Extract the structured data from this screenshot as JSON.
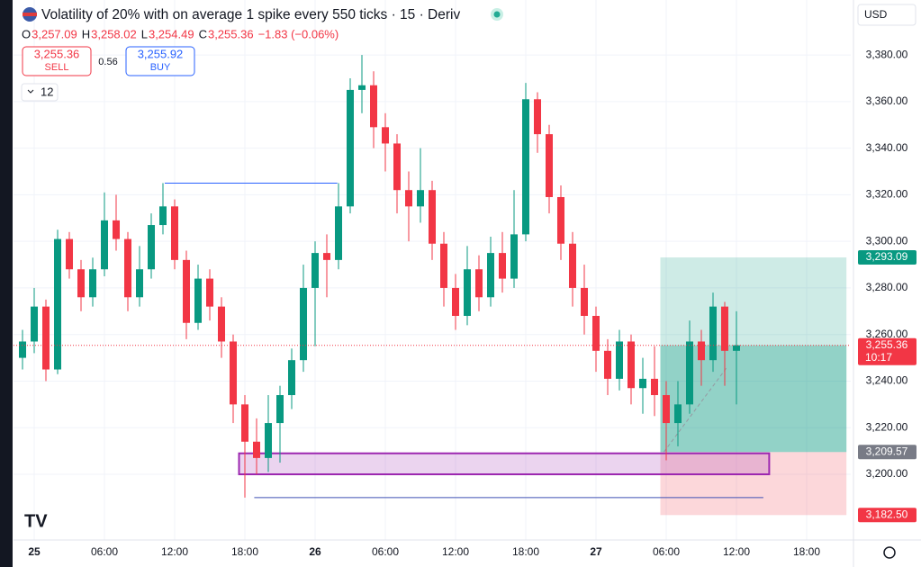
{
  "toolbar": {
    "title": "Volatility of 20% with on average 1 spike every 550 ticks · 15 · Deriv",
    "ohlc": [
      {
        "key": "O",
        "value": "3,257.09"
      },
      {
        "key": "H",
        "value": "3,258.02"
      },
      {
        "key": "L",
        "value": "3,254.49"
      },
      {
        "key": "C",
        "value": "3,255.36"
      }
    ],
    "change": "−1.83 (−0.06%)",
    "sell": {
      "price": "3,255.36",
      "label": "SELL"
    },
    "spread": "0.56",
    "buy": {
      "price": "3,255.92",
      "label": "BUY"
    },
    "indicators": "12",
    "currency": "USD"
  },
  "chart_data": {
    "type": "candlestick",
    "up_color": "#089981",
    "down_color": "#f23645",
    "grid": true,
    "xlim": [
      -1.77,
      69.77
    ],
    "ylim": [
      3171.8,
      3403.6
    ],
    "xticks": [
      {
        "value": 0,
        "label": "25"
      },
      {
        "value": 6,
        "label": "06:00"
      },
      {
        "value": 12,
        "label": "12:00"
      },
      {
        "value": 18,
        "label": "18:00"
      },
      {
        "value": 24,
        "label": "26"
      },
      {
        "value": 30,
        "label": "06:00"
      },
      {
        "value": 36,
        "label": "12:00"
      },
      {
        "value": 42,
        "label": "18:00"
      },
      {
        "value": 48,
        "label": "27"
      },
      {
        "value": 54,
        "label": "06:00"
      },
      {
        "value": 60,
        "label": "12:00"
      },
      {
        "value": 66,
        "label": "18:00"
      }
    ],
    "yticks": [
      {
        "value": 3200,
        "label": "3,200.00"
      },
      {
        "value": 3220,
        "label": "3,220.00"
      },
      {
        "value": 3240,
        "label": "3,240.00"
      },
      {
        "value": 3260,
        "label": "3,260.00"
      },
      {
        "value": 3280,
        "label": "3,280.00"
      },
      {
        "value": 3300,
        "label": "3,300.00"
      },
      {
        "value": 3320,
        "label": "3,320.00"
      },
      {
        "value": 3340,
        "label": "3,340.00"
      },
      {
        "value": 3360,
        "label": "3,360.00"
      },
      {
        "value": 3380,
        "label": "3,380.00"
      }
    ],
    "x": [
      -1,
      0,
      1,
      2,
      3,
      4,
      5,
      6,
      7,
      8,
      9,
      10,
      11,
      12,
      13,
      14,
      15,
      16,
      17,
      18,
      19,
      20,
      21,
      22,
      23,
      24,
      25,
      26,
      27,
      28,
      29,
      30,
      31,
      32,
      33,
      34,
      35,
      36,
      37,
      38,
      39,
      40,
      41,
      42,
      43,
      44,
      45,
      46,
      47,
      48,
      49,
      50,
      51,
      52,
      53,
      54,
      55,
      56,
      57,
      58,
      59,
      60
    ],
    "candles": [
      [
        3250,
        3262,
        3245,
        3257
      ],
      [
        3257,
        3280,
        3252,
        3272
      ],
      [
        3272,
        3275,
        3240,
        3245
      ],
      [
        3245,
        3305,
        3243,
        3301
      ],
      [
        3301,
        3304,
        3284,
        3288
      ],
      [
        3288,
        3292,
        3270,
        3276
      ],
      [
        3276,
        3293,
        3272,
        3288
      ],
      [
        3288,
        3321,
        3285,
        3309
      ],
      [
        3309,
        3320,
        3296,
        3301
      ],
      [
        3301,
        3304,
        3270,
        3276
      ],
      [
        3276,
        3298,
        3272,
        3288
      ],
      [
        3288,
        3312,
        3284,
        3307
      ],
      [
        3307,
        3325,
        3303,
        3315
      ],
      [
        3315,
        3318,
        3288,
        3292
      ],
      [
        3292,
        3296,
        3258,
        3265
      ],
      [
        3265,
        3290,
        3262,
        3284
      ],
      [
        3284,
        3288,
        3266,
        3272
      ],
      [
        3272,
        3276,
        3250,
        3257
      ],
      [
        3257,
        3260,
        3222,
        3230
      ],
      [
        3230,
        3234,
        3190,
        3214
      ],
      [
        3214,
        3224,
        3200,
        3207
      ],
      [
        3207,
        3234,
        3201,
        3222
      ],
      [
        3222,
        3238,
        3205,
        3234
      ],
      [
        3234,
        3254,
        3228,
        3249
      ],
      [
        3249,
        3290,
        3244,
        3280
      ],
      [
        3280,
        3300,
        3255,
        3295
      ],
      [
        3295,
        3303,
        3276,
        3292
      ],
      [
        3292,
        3325,
        3288,
        3315
      ],
      [
        3315,
        3370,
        3312,
        3365
      ],
      [
        3365,
        3380,
        3355,
        3367
      ],
      [
        3367,
        3373,
        3340,
        3349
      ],
      [
        3349,
        3355,
        3330,
        3342
      ],
      [
        3342,
        3346,
        3312,
        3322
      ],
      [
        3322,
        3330,
        3300,
        3315
      ],
      [
        3315,
        3340,
        3308,
        3322
      ],
      [
        3322,
        3326,
        3292,
        3299
      ],
      [
        3299,
        3304,
        3272,
        3280
      ],
      [
        3280,
        3286,
        3262,
        3268
      ],
      [
        3268,
        3298,
        3264,
        3288
      ],
      [
        3288,
        3294,
        3270,
        3276
      ],
      [
        3276,
        3302,
        3272,
        3295
      ],
      [
        3295,
        3304,
        3278,
        3284
      ],
      [
        3284,
        3322,
        3280,
        3303
      ],
      [
        3303,
        3368,
        3300,
        3361
      ],
      [
        3361,
        3364,
        3338,
        3346
      ],
      [
        3346,
        3350,
        3312,
        3319
      ],
      [
        3319,
        3324,
        3292,
        3299
      ],
      [
        3299,
        3304,
        3272,
        3280
      ],
      [
        3280,
        3290,
        3260,
        3268
      ],
      [
        3268,
        3272,
        3244,
        3253
      ],
      [
        3253,
        3258,
        3234,
        3241
      ],
      [
        3241,
        3262,
        3236,
        3257
      ],
      [
        3257,
        3260,
        3230,
        3237
      ],
      [
        3237,
        3250,
        3226,
        3241
      ],
      [
        3241,
        3255,
        3225,
        3234
      ],
      [
        3234,
        3240,
        3206,
        3222
      ],
      [
        3222,
        3240,
        3212,
        3230
      ],
      [
        3230,
        3266,
        3226,
        3257
      ],
      [
        3257,
        3262,
        3238,
        3249
      ],
      [
        3249,
        3278,
        3244,
        3272
      ],
      [
        3272,
        3274,
        3238,
        3253
      ],
      [
        3253,
        3270,
        3230,
        3255.36
      ]
    ],
    "last_price": {
      "value": 3255.36,
      "label": "3,255.36",
      "countdown": "10:17"
    },
    "position": {
      "x": [
        53.5,
        69.4
      ],
      "target": {
        "value": 3293.09,
        "label": "3,293.09"
      },
      "entry": {
        "value": 3209.57,
        "label": "3,209.57"
      },
      "stop": {
        "value": 3182.5,
        "label": "3,182.50"
      }
    },
    "zone": {
      "x": [
        17.5,
        62.8
      ],
      "y": [
        3200,
        3209
      ],
      "color": "#9c27b0"
    },
    "lines": [
      {
        "x": [
          11.15,
          25.9
        ],
        "y": [
          3325,
          3325
        ],
        "color": "#2962ff"
      },
      {
        "x": [
          18.8,
          62.3
        ],
        "y": [
          3190,
          3190
        ],
        "color": "#3f51b5"
      },
      {
        "x": [
          53.8,
          59.2
        ],
        "y": [
          3209.57,
          3246
        ],
        "color": "#9598a1"
      }
    ]
  }
}
